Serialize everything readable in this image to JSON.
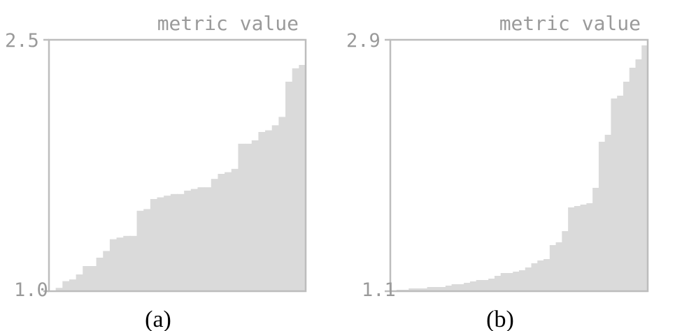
{
  "chart_data": [
    {
      "type": "bar",
      "panel": "(a)",
      "ylabel": "metric value",
      "ylim": [
        1.0,
        2.5
      ],
      "ytick_labels": [
        "2.5",
        "1.0"
      ],
      "caption": "(a)",
      "values": [
        1.0,
        1.02,
        1.06,
        1.07,
        1.1,
        1.15,
        1.15,
        1.2,
        1.24,
        1.31,
        1.32,
        1.33,
        1.33,
        1.48,
        1.49,
        1.55,
        1.56,
        1.57,
        1.58,
        1.58,
        1.6,
        1.61,
        1.62,
        1.62,
        1.67,
        1.7,
        1.71,
        1.73,
        1.88,
        1.88,
        1.9,
        1.95,
        1.96,
        1.99,
        2.04,
        2.25,
        2.33,
        2.35
      ]
    },
    {
      "type": "bar",
      "panel": "(b)",
      "ylabel": "metric value",
      "ylim": [
        1.1,
        2.9
      ],
      "ytick_labels": [
        "2.9",
        "1.1"
      ],
      "caption": "(b)",
      "values": [
        1.1,
        1.11,
        1.11,
        1.12,
        1.12,
        1.12,
        1.13,
        1.13,
        1.13,
        1.14,
        1.15,
        1.15,
        1.16,
        1.17,
        1.18,
        1.18,
        1.19,
        1.21,
        1.23,
        1.23,
        1.24,
        1.25,
        1.27,
        1.3,
        1.32,
        1.33,
        1.43,
        1.45,
        1.53,
        1.7,
        1.71,
        1.72,
        1.73,
        1.84,
        2.17,
        2.22,
        2.48,
        2.5,
        2.6,
        2.7,
        2.76,
        2.86
      ]
    }
  ]
}
